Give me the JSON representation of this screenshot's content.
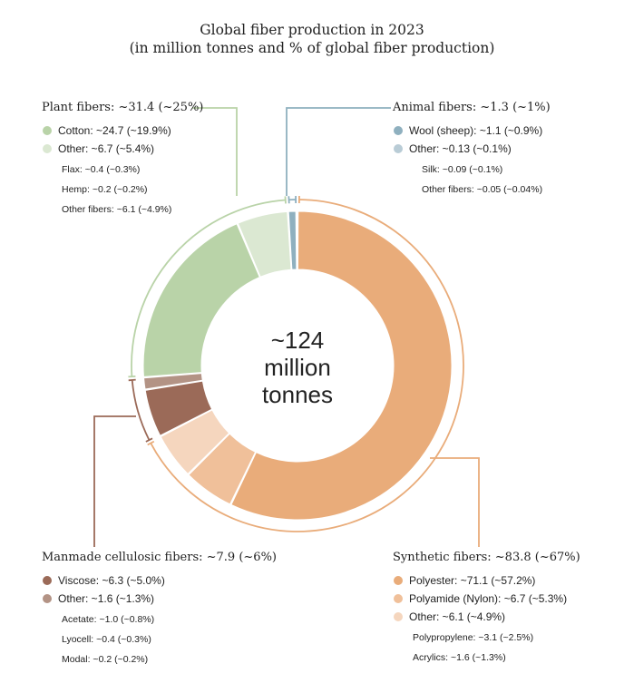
{
  "title_line1": "Global fiber production in 2023",
  "title_line2": "(in million tonnes and % of global fiber production)",
  "center": {
    "line1": "~124",
    "line2": "million",
    "line3": "tonnes"
  },
  "colors": {
    "cotton": "#b9d3a8",
    "plant_other": "#dbe8d2",
    "wool": "#8fb0bf",
    "animal_other": "#b9ccd6",
    "viscose": "#9b6a58",
    "mmcf_other": "#b39385",
    "polyester": "#e9ac7a",
    "polyamide": "#f0c09a",
    "synthetic_other": "#f5d6be",
    "plant_line": "#b9d3a8",
    "animal_line": "#8fb0bf",
    "mmcf_line": "#9b6a58",
    "synthetic_line": "#e9ac7a"
  },
  "groups": {
    "plant": {
      "header": "Plant fibers: ~31.4 (~25%)",
      "items": [
        {
          "label": "Cotton: ~24.7 (~19.9%)",
          "color_key": "cotton"
        },
        {
          "label": "Other: ~6.7 (~5.4%)",
          "color_key": "plant_other"
        }
      ],
      "subs": [
        "Flax: ~0.4 (~0.3%)",
        "Hemp: ~0.2 (~0.2%)",
        "Other fibers: ~6.1 (~4.9%)"
      ]
    },
    "animal": {
      "header": "Animal fibers: ~1.3 (~1%)",
      "items": [
        {
          "label": "Wool (sheep): ~1.1 (~0.9%)",
          "color_key": "wool"
        },
        {
          "label": "Other: ~0.13 (~0.1%)",
          "color_key": "animal_other"
        }
      ],
      "subs": [
        "Silk: ~0.09 (~0.1%)",
        "Other fibers: ~0.05 (~0.04%)"
      ]
    },
    "mmcf": {
      "header": "Manmade cellulosic fibers: ~7.9 (~6%)",
      "items": [
        {
          "label": "Viscose: ~6.3 (~5.0%)",
          "color_key": "viscose"
        },
        {
          "label": "Other: ~1.6 (~1.3%)",
          "color_key": "mmcf_other"
        }
      ],
      "subs": [
        "Acetate: ~1.0 (~0.8%)",
        "Lyocell: ~0.4 (~0.3%)",
        "Modal: ~0.2 (~0.2%)"
      ]
    },
    "synthetic": {
      "header": "Synthetic fibers: ~83.8 (~67%)",
      "items": [
        {
          "label": "Polyester: ~71.1 (~57.2%)",
          "color_key": "polyester"
        },
        {
          "label": "Polyamide (Nylon): ~6.7 (~5.3%)",
          "color_key": "polyamide"
        },
        {
          "label": "Other: ~6.1 (~4.9%)",
          "color_key": "synthetic_other"
        }
      ],
      "subs": [
        "Polypropylene: ~3.1 (~2.5%)",
        "Acrylics: ~1.6 (~1.3%)"
      ]
    }
  },
  "chart_data": {
    "type": "pie",
    "title": "Global fiber production in 2023",
    "subtitle": "(in million tonnes and % of global fiber production)",
    "total": 124,
    "slices": [
      {
        "label": "Polyester",
        "value": 71.1,
        "percent": 57.2,
        "group": "Synthetic fibers",
        "color": "#e9ac7a"
      },
      {
        "label": "Polyamide (Nylon)",
        "value": 6.7,
        "percent": 5.3,
        "group": "Synthetic fibers",
        "color": "#f0c09a"
      },
      {
        "label": "Other",
        "value": 6.1,
        "percent": 4.9,
        "group": "Synthetic fibers",
        "color": "#f5d6be"
      },
      {
        "label": "Viscose",
        "value": 6.3,
        "percent": 5.0,
        "group": "Manmade cellulosic fibers",
        "color": "#9b6a58"
      },
      {
        "label": "Other",
        "value": 1.6,
        "percent": 1.3,
        "group": "Manmade cellulosic fibers",
        "color": "#b39385"
      },
      {
        "label": "Cotton",
        "value": 24.7,
        "percent": 19.9,
        "group": "Plant fibers",
        "color": "#b9d3a8"
      },
      {
        "label": "Other",
        "value": 6.7,
        "percent": 5.4,
        "group": "Plant fibers",
        "color": "#dbe8d2"
      },
      {
        "label": "Wool (sheep)",
        "value": 1.1,
        "percent": 0.9,
        "group": "Animal fibers",
        "color": "#8fb0bf"
      },
      {
        "label": "Other",
        "value": 0.13,
        "percent": 0.1,
        "group": "Animal fibers",
        "color": "#b9ccd6"
      }
    ],
    "groups": [
      {
        "name": "Synthetic fibers",
        "value": 83.8,
        "percent": 67,
        "color": "#e9ac7a"
      },
      {
        "name": "Manmade cellulosic fibers",
        "value": 7.9,
        "percent": 6,
        "color": "#9b6a58"
      },
      {
        "name": "Plant fibers",
        "value": 31.4,
        "percent": 25,
        "color": "#b9d3a8"
      },
      {
        "name": "Animal fibers",
        "value": 1.3,
        "percent": 1,
        "color": "#8fb0bf"
      }
    ]
  }
}
